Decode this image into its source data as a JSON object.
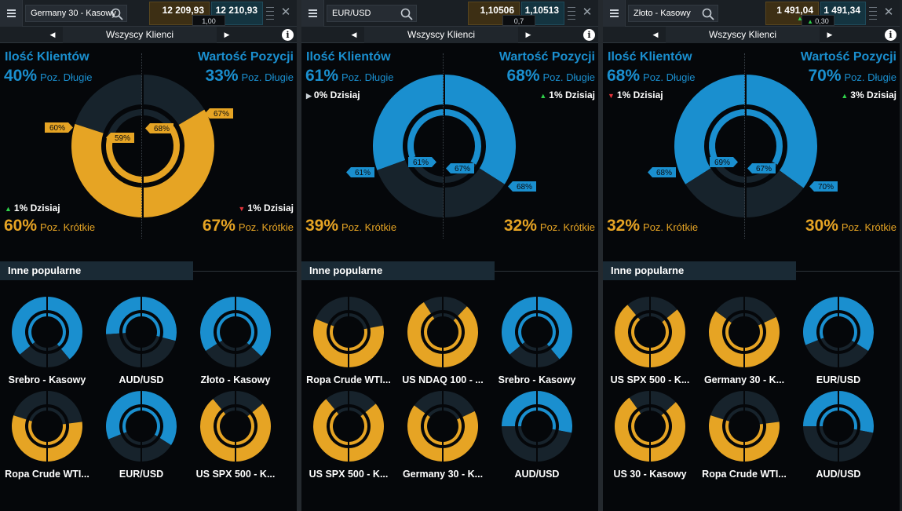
{
  "colors": {
    "blue": "#1a8fcf",
    "gold": "#e6a424",
    "dark": "#17232c",
    "bg": "#05070a"
  },
  "panels": [
    {
      "instrument": "Germany 30 - Kasowy",
      "bid": "12 209,93",
      "ask": "12 210,93",
      "spread": "1,00",
      "spread_dir": "",
      "filter": "Wszyscy Klienci",
      "clients_title": "Ilość Klientów",
      "value_title": "Wartość Pozycji",
      "clients_long_pct": "40%",
      "value_long_pct": "33%",
      "long_label": "Poz. Długie",
      "clients_short_pct": "60%",
      "value_short_pct": "67%",
      "short_label": "Poz. Krótkie",
      "today_clients": "1% Dzisiaj",
      "today_clients_dir": "up",
      "today_value": "1% Dzisiaj",
      "today_value_dir": "down",
      "today_pos": "bottom",
      "outer_left_long": 0.4,
      "outer_right_long": 0.33,
      "inner_left_long": 0.41,
      "inner_right_long": 0.32,
      "tag_outer_left": "60%",
      "tag_inner_left": "59%",
      "tag_inner_right": "68%",
      "tag_outer_right": "67%",
      "tags_side": "short",
      "popular_title": "Inne popularne",
      "popular": [
        {
          "name": "Srebro - Kasowy",
          "long": 0.72
        },
        {
          "name": "AUD/USD",
          "long": 0.52
        },
        {
          "name": "Złoto - Kasowy",
          "long": 0.68
        },
        {
          "name": "Ropa Crude WTI...",
          "long": 0.4
        },
        {
          "name": "EUR/USD",
          "long": 0.62
        },
        {
          "name": "US SPX 500 - K...",
          "long": 0.22
        }
      ]
    },
    {
      "instrument": "EUR/USD",
      "bid": "1,10506",
      "ask": "1,10513",
      "spread": "0,7",
      "spread_dir": "",
      "filter": "Wszyscy Klienci",
      "clients_title": "Ilość Klientów",
      "value_title": "Wartość Pozycji",
      "clients_long_pct": "61%",
      "value_long_pct": "68%",
      "long_label": "Poz. Długie",
      "clients_short_pct": "39%",
      "value_short_pct": "32%",
      "short_label": "Poz. Krótkie",
      "today_clients": "0% Dzisiaj",
      "today_clients_dir": "flat",
      "today_value": "1% Dzisiaj",
      "today_value_dir": "up",
      "today_pos": "top",
      "outer_left_long": 0.61,
      "outer_right_long": 0.68,
      "inner_left_long": 0.61,
      "inner_right_long": 0.67,
      "tag_outer_left": "61%",
      "tag_inner_left": "61%",
      "tag_inner_right": "67%",
      "tag_outer_right": "68%",
      "tags_side": "long",
      "popular_title": "Inne popularne",
      "popular": [
        {
          "name": "Ropa Crude WTI...",
          "long": 0.38
        },
        {
          "name": "US NDAQ 100 - ...",
          "long": 0.18
        },
        {
          "name": "Srebro - Kasowy",
          "long": 0.72
        },
        {
          "name": "US SPX 500 - K...",
          "long": 0.22
        },
        {
          "name": "Germany 30 - K...",
          "long": 0.3
        },
        {
          "name": "AUD/USD",
          "long": 0.5
        }
      ]
    },
    {
      "instrument": "Złoto - Kasowy",
      "bid": "1 491,04",
      "ask": "1 491,34",
      "spread": "0,30",
      "spread_dir": "up",
      "filter": "Wszyscy Klienci",
      "clients_title": "Ilość Klientów",
      "value_title": "Wartość Pozycji",
      "clients_long_pct": "68%",
      "value_long_pct": "70%",
      "long_label": "Poz. Długie",
      "clients_short_pct": "32%",
      "value_short_pct": "30%",
      "short_label": "Poz. Krótkie",
      "today_clients": "1% Dzisiaj",
      "today_clients_dir": "down",
      "today_value": "3% Dzisiaj",
      "today_value_dir": "up",
      "today_pos": "top",
      "outer_left_long": 0.68,
      "outer_right_long": 0.7,
      "inner_left_long": 0.69,
      "inner_right_long": 0.67,
      "tag_outer_left": "68%",
      "tag_inner_left": "69%",
      "tag_inner_right": "67%",
      "tag_outer_right": "70%",
      "tags_side": "long",
      "popular_title": "Inne popularne",
      "popular": [
        {
          "name": "US SPX 500 - K...",
          "long": 0.22
        },
        {
          "name": "Germany 30 - K...",
          "long": 0.3
        },
        {
          "name": "EUR/USD",
          "long": 0.62
        },
        {
          "name": "US 30 - Kasowy",
          "long": 0.2
        },
        {
          "name": "Ropa Crude WTI...",
          "long": 0.4
        },
        {
          "name": "AUD/USD",
          "long": 0.5
        }
      ]
    }
  ]
}
